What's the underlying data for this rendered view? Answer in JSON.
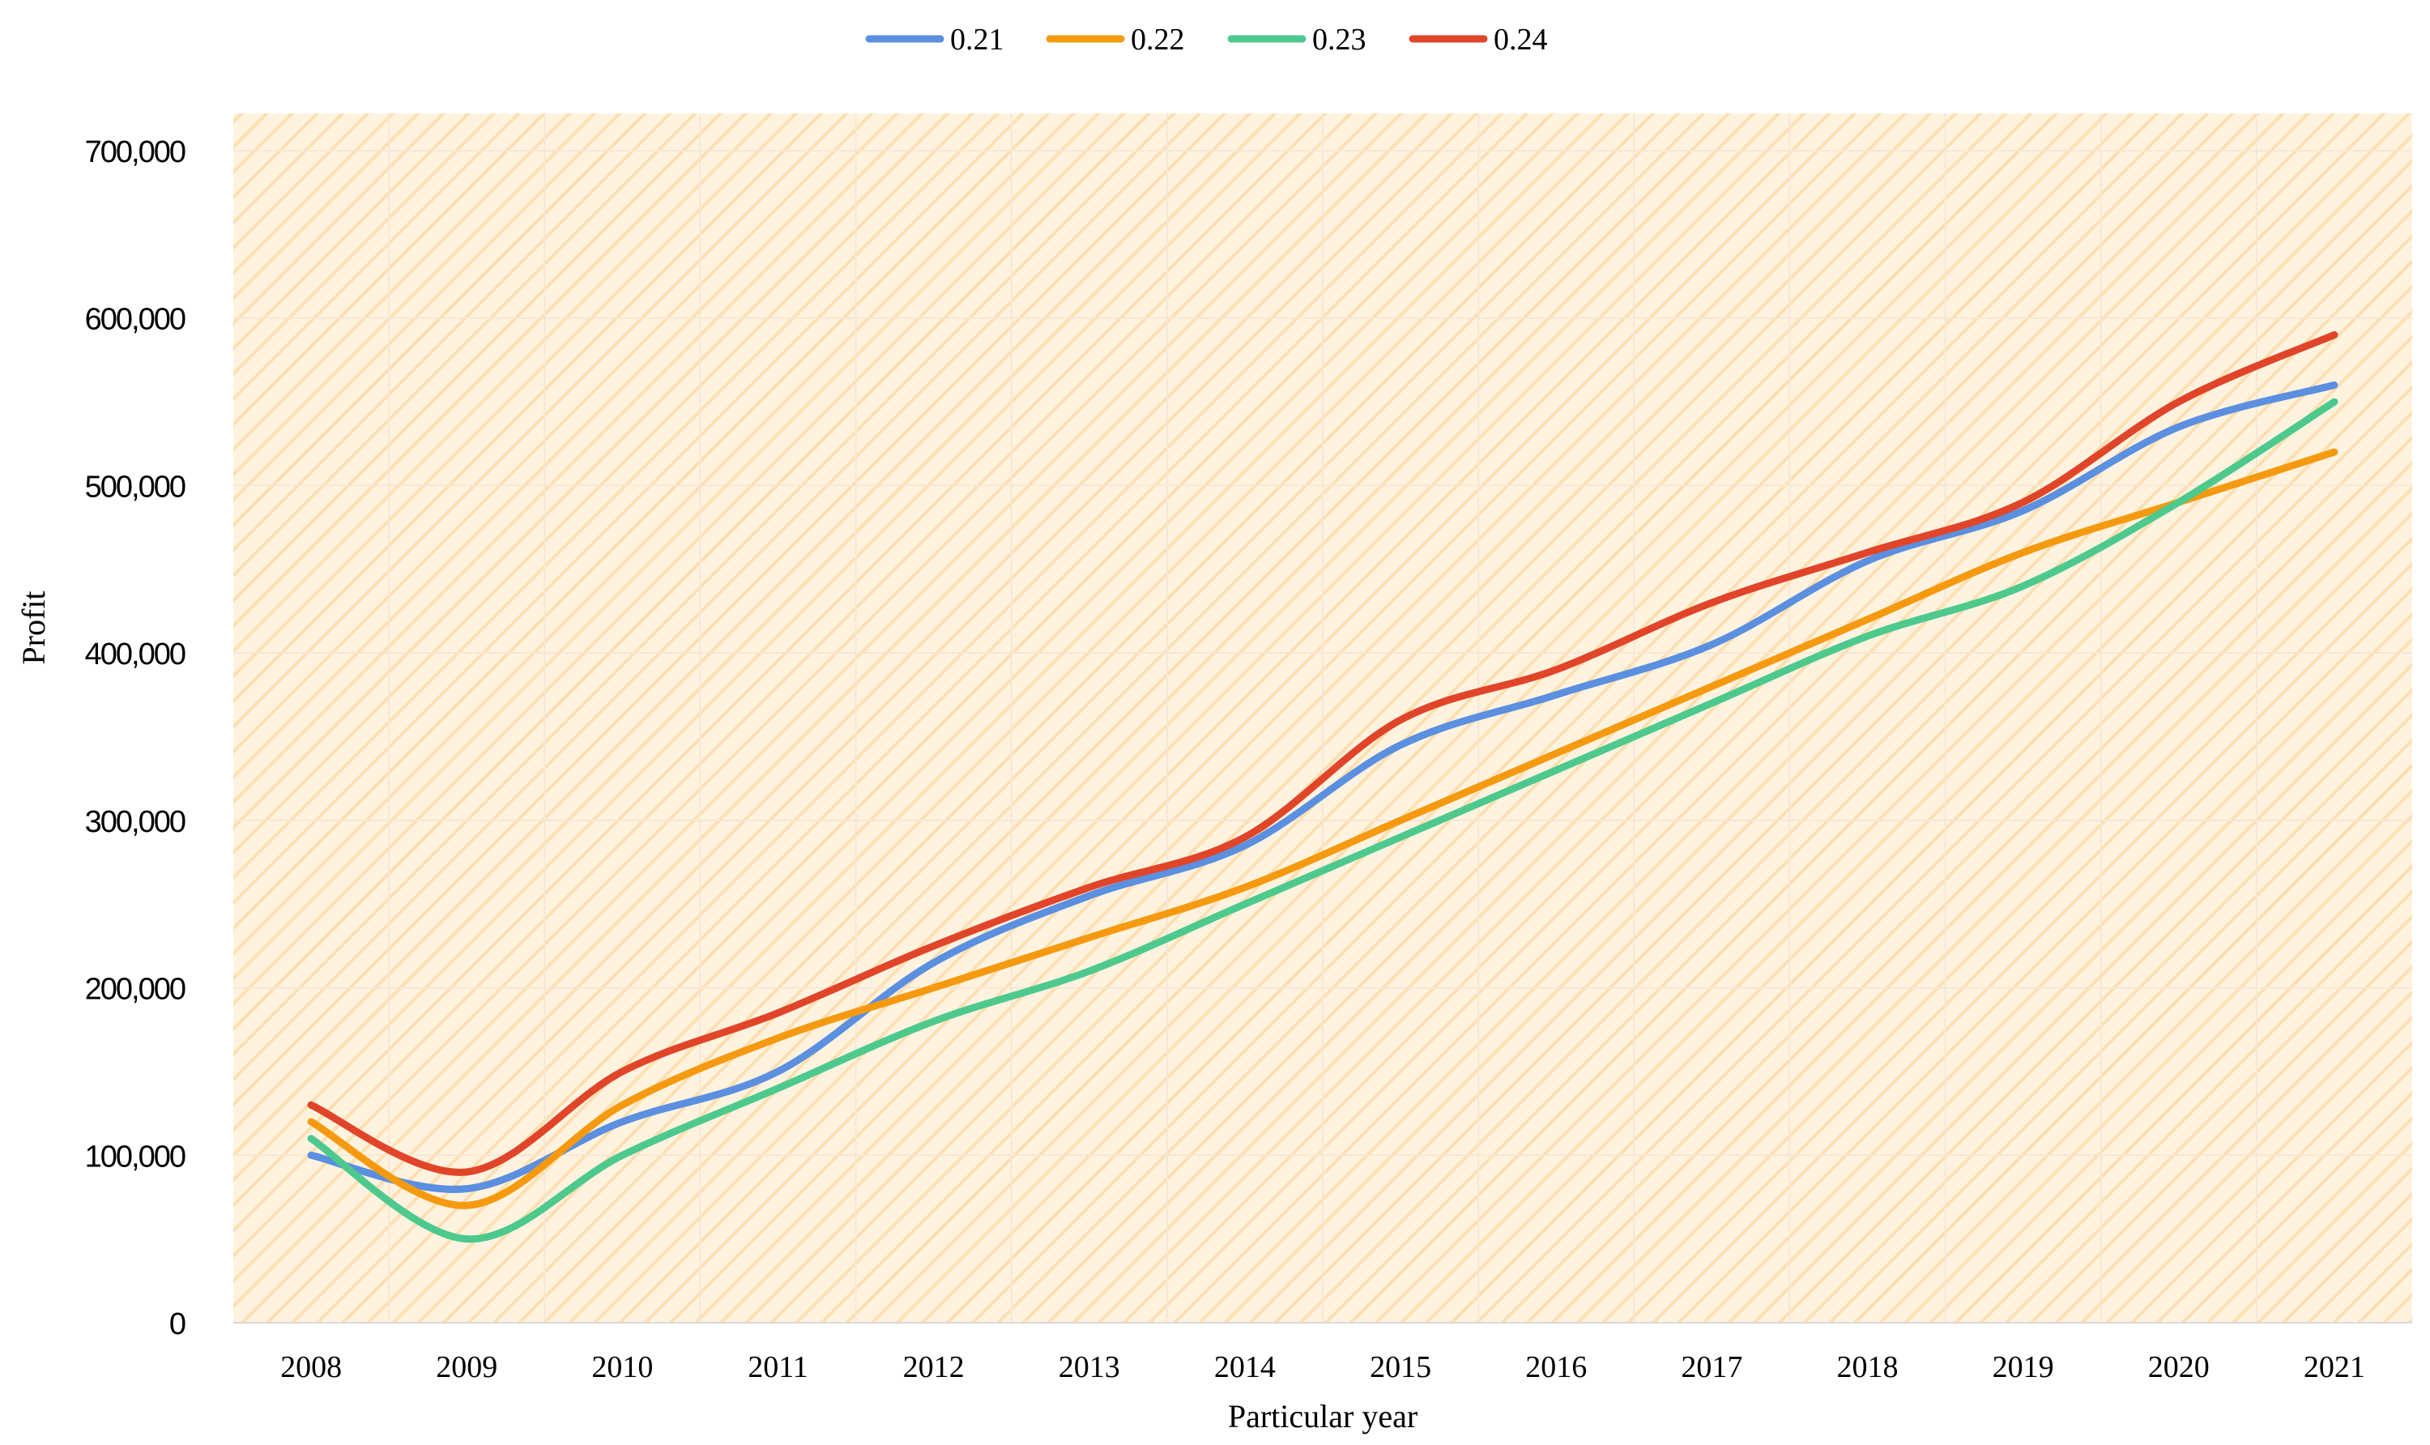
{
  "chart_data": {
    "type": "line",
    "title": "",
    "xlabel": "Particular year",
    "ylabel": "Profit",
    "categories": [
      "2008",
      "2009",
      "2010",
      "2011",
      "2012",
      "2013",
      "2014",
      "2015",
      "2016",
      "2017",
      "2018",
      "2019",
      "2020",
      "2021"
    ],
    "ylim": [
      0,
      700000
    ],
    "yticks": [
      0,
      100000,
      200000,
      300000,
      400000,
      500000,
      600000,
      700000
    ],
    "ytick_labels": [
      "0",
      "100,000",
      "200,000",
      "300,000",
      "400,000",
      "500,000",
      "600,000",
      "700,000"
    ],
    "grid": true,
    "legend_position": "top-center",
    "plot_background": "#FFF3E0",
    "hatch_color": "#FFDFB0",
    "grid_color": "#F3E7D6",
    "series": [
      {
        "name": "0.21",
        "color": "#5B8FE0",
        "values": [
          100000,
          80000,
          120000,
          150000,
          215000,
          255000,
          285000,
          345000,
          375000,
          405000,
          455000,
          485000,
          535000,
          560000
        ]
      },
      {
        "name": "0.22",
        "color": "#F59A10",
        "values": [
          120000,
          70000,
          130000,
          170000,
          200000,
          230000,
          260000,
          300000,
          340000,
          380000,
          420000,
          460000,
          490000,
          520000
        ]
      },
      {
        "name": "0.23",
        "color": "#4DC98E",
        "values": [
          110000,
          50000,
          100000,
          140000,
          180000,
          210000,
          250000,
          290000,
          330000,
          370000,
          410000,
          440000,
          490000,
          550000
        ]
      },
      {
        "name": "0.24",
        "color": "#E0452A",
        "values": [
          130000,
          90000,
          150000,
          185000,
          225000,
          260000,
          290000,
          360000,
          390000,
          430000,
          460000,
          490000,
          550000,
          590000
        ]
      }
    ]
  }
}
